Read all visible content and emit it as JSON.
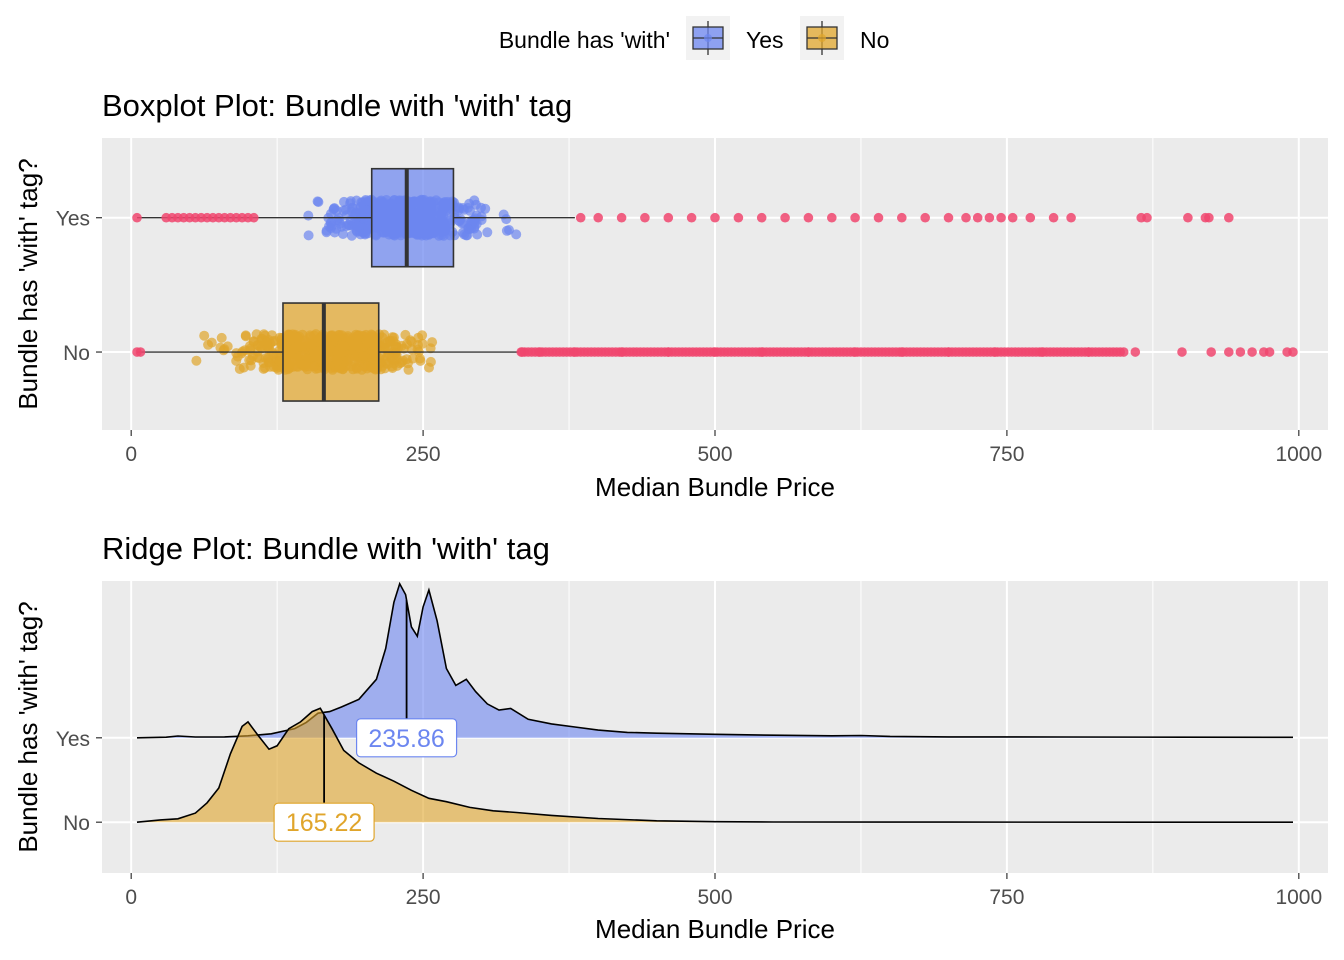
{
  "legend": {
    "title": "Bundle has 'with'",
    "items": [
      {
        "label": "Yes",
        "color": "#6C86F0"
      },
      {
        "label": "No",
        "color": "#E0A52B"
      }
    ]
  },
  "colors": {
    "yes": "#6C86F0",
    "no": "#E0A52B",
    "outlier": "#F0466E",
    "panel": "#EBEBEB",
    "grid": "#FFFFFF"
  },
  "chart_data": [
    {
      "type": "boxplot",
      "title": "Boxplot Plot: Bundle with 'with' tag",
      "xlabel": "Median Bundle Price",
      "ylabel": "Bundle has 'with' tag?",
      "xlim": [
        -25,
        1025
      ],
      "xticks": [
        0,
        250,
        500,
        750,
        1000
      ],
      "categories": [
        "Yes",
        "No"
      ],
      "grid": true,
      "boxes": [
        {
          "name": "Yes",
          "whisker_low": 5,
          "q1": 206,
          "median": 236,
          "q3": 276,
          "whisker_high": 380,
          "jitter_range": [
            130,
            342
          ],
          "outliers": [
            5,
            30,
            35,
            40,
            45,
            50,
            55,
            60,
            65,
            70,
            75,
            80,
            85,
            90,
            95,
            100,
            105,
            385,
            400,
            420,
            440,
            460,
            480,
            500,
            520,
            540,
            560,
            580,
            600,
            620,
            640,
            660,
            680,
            700,
            715,
            725,
            735,
            745,
            755,
            770,
            790,
            805,
            865,
            870,
            905,
            920,
            923,
            940
          ]
        },
        {
          "name": "No",
          "whisker_low": 5,
          "q1": 130,
          "median": 165,
          "q3": 212,
          "whisker_high": 332,
          "jitter_range": [
            42,
            292
          ],
          "outliers": [
            5,
            8,
            335,
            350,
            380,
            420,
            460,
            500,
            540,
            580,
            620,
            660,
            700,
            740,
            780,
            820,
            860,
            900,
            925,
            940,
            950,
            960,
            970,
            975,
            990,
            995
          ]
        }
      ]
    },
    {
      "type": "ridge",
      "title": "Ridge Plot: Bundle with 'with' tag",
      "xlabel": "Median Bundle Price",
      "ylabel": "Bundle has 'with' tag?",
      "xlim": [
        -25,
        1025
      ],
      "xticks": [
        0,
        250,
        500,
        750,
        1000
      ],
      "categories": [
        "Yes",
        "No"
      ],
      "grid": true,
      "series": [
        {
          "name": "Yes",
          "median": 235.86,
          "median_label": "235.86",
          "x_range": [
            5,
            995
          ],
          "density": [
            [
              5,
              0
            ],
            [
              30,
              0.004
            ],
            [
              40,
              0.012
            ],
            [
              55,
              0.005
            ],
            [
              80,
              0.006
            ],
            [
              100,
              0.013
            ],
            [
              120,
              0.026
            ],
            [
              140,
              0.06
            ],
            [
              150,
              0.1
            ],
            [
              160,
              0.16
            ],
            [
              170,
              0.17
            ],
            [
              180,
              0.2
            ],
            [
              195,
              0.25
            ],
            [
              210,
              0.38
            ],
            [
              218,
              0.58
            ],
            [
              225,
              0.88
            ],
            [
              230,
              1.0
            ],
            [
              235,
              0.93
            ],
            [
              240,
              0.72
            ],
            [
              245,
              0.66
            ],
            [
              250,
              0.85
            ],
            [
              255,
              0.96
            ],
            [
              262,
              0.76
            ],
            [
              270,
              0.45
            ],
            [
              278,
              0.34
            ],
            [
              287,
              0.38
            ],
            [
              295,
              0.3
            ],
            [
              305,
              0.22
            ],
            [
              315,
              0.18
            ],
            [
              325,
              0.19
            ],
            [
              340,
              0.12
            ],
            [
              360,
              0.09
            ],
            [
              380,
              0.07
            ],
            [
              400,
              0.05
            ],
            [
              425,
              0.035
            ],
            [
              450,
              0.03
            ],
            [
              500,
              0.023
            ],
            [
              550,
              0.017
            ],
            [
              600,
              0.013
            ],
            [
              625,
              0.015
            ],
            [
              650,
              0.009
            ],
            [
              700,
              0.006
            ],
            [
              800,
              0.005
            ],
            [
              900,
              0.004
            ],
            [
              995,
              0.003
            ]
          ]
        },
        {
          "name": "No",
          "median": 165.22,
          "median_label": "165.22",
          "x_range": [
            5,
            995
          ],
          "density": [
            [
              5,
              0
            ],
            [
              25,
              0.02
            ],
            [
              40,
              0.03
            ],
            [
              55,
              0.08
            ],
            [
              65,
              0.17
            ],
            [
              75,
              0.3
            ],
            [
              85,
              0.6
            ],
            [
              95,
              0.84
            ],
            [
              100,
              0.88
            ],
            [
              108,
              0.77
            ],
            [
              118,
              0.64
            ],
            [
              125,
              0.67
            ],
            [
              135,
              0.82
            ],
            [
              145,
              0.88
            ],
            [
              155,
              0.97
            ],
            [
              162,
              1.0
            ],
            [
              172,
              0.82
            ],
            [
              182,
              0.63
            ],
            [
              195,
              0.52
            ],
            [
              210,
              0.43
            ],
            [
              225,
              0.36
            ],
            [
              240,
              0.28
            ],
            [
              255,
              0.21
            ],
            [
              270,
              0.18
            ],
            [
              290,
              0.13
            ],
            [
              310,
              0.1
            ],
            [
              330,
              0.085
            ],
            [
              360,
              0.06
            ],
            [
              400,
              0.032
            ],
            [
              450,
              0.012
            ],
            [
              500,
              0.004
            ],
            [
              550,
              0.002
            ],
            [
              700,
              0.001
            ],
            [
              995,
              0
            ]
          ]
        }
      ]
    }
  ]
}
